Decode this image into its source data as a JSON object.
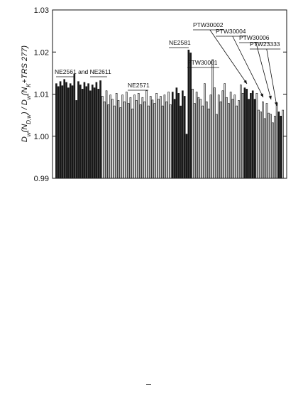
{
  "chart_data": {
    "type": "bar",
    "ylabel": "Dw(ND,w) / Dw(NK+TRS 277)",
    "ylim": [
      0.99,
      1.03
    ],
    "yticks": [
      "0.99",
      "1.00",
      "1.01",
      "1.02",
      "1.03"
    ],
    "grid": false,
    "legend": "none",
    "colors": {
      "dark": "#1a1a1a",
      "light": "#d9d9d9",
      "stroke": "#111111"
    },
    "groups": [
      {
        "label": "NE2561 and NE2611",
        "shade": "dark",
        "values": [
          1.0125,
          1.0118,
          1.013,
          1.012,
          1.0135,
          1.0128,
          1.0115,
          1.0125,
          1.012,
          1.0148,
          1.0085,
          1.013,
          1.0122,
          1.0112,
          1.0128,
          1.0118,
          1.0125,
          1.0108,
          1.0122,
          1.0115,
          1.0128,
          1.0112,
          1.0132
        ]
      },
      {
        "label": "NE2571",
        "shade": "light",
        "values": [
          1.0095,
          1.0082,
          1.0108,
          1.0075,
          1.0098,
          1.0088,
          1.0072,
          1.0102,
          1.0085,
          1.0068,
          1.0098,
          1.0082,
          1.0105,
          1.0078,
          1.0092,
          1.0065,
          1.0098,
          1.0085,
          1.0102,
          1.0075,
          1.0092,
          1.0082,
          1.0108,
          1.0072,
          1.0095,
          1.0086,
          1.0078,
          1.0102,
          1.0088,
          1.0095,
          1.0072,
          1.0098,
          1.0082,
          1.0105,
          1.0075
        ]
      },
      {
        "label": "NE2581",
        "shade": "dark",
        "values": [
          1.0105,
          1.0088,
          1.0115,
          1.0102,
          1.0072,
          1.0108,
          1.0095,
          1.0005,
          1.0205,
          1.0198
        ]
      },
      {
        "label": "PTW30001",
        "shade": "light",
        "values": [
          1.0112,
          1.0078,
          1.0105,
          1.0092,
          1.0088,
          1.0072,
          1.0125,
          1.0082,
          1.0065,
          1.0098,
          1.0182,
          1.0115,
          1.0052,
          1.0098,
          1.0082,
          1.0108,
          1.0125,
          1.0092,
          1.0078,
          1.0105,
          1.0088,
          1.0098,
          1.0072,
          1.0085,
          1.0122,
          1.0102
        ]
      },
      {
        "label": "PTW30002",
        "shade": "dark",
        "values": [
          1.0115,
          1.0112,
          1.0088,
          1.0102,
          1.0108,
          1.0088
        ]
      },
      {
        "label": "PTW30004",
        "shade": "light",
        "values": [
          1.0102,
          1.0062,
          1.0058,
          1.0082,
          1.0042,
          1.0078,
          1.0055
        ]
      },
      {
        "label": "PTW30006",
        "shade": "light",
        "values": [
          1.0052,
          1.0032,
          1.0048,
          1.0078
        ]
      },
      {
        "label": "PTW23333",
        "shade": "dark",
        "values": [
          1.0058,
          1.0048
        ]
      },
      {
        "label": "",
        "shade": "light",
        "values": [
          1.0062
        ]
      }
    ]
  }
}
